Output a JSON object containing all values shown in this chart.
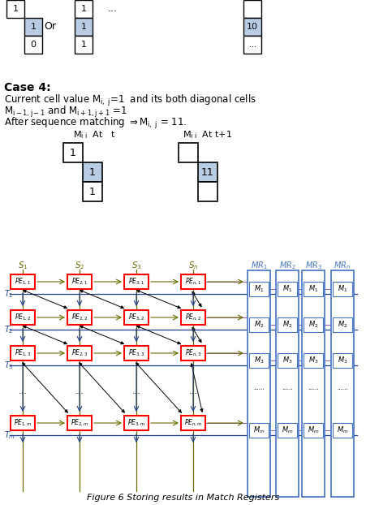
{
  "title": "Figure 6 Storing results in Match Registers",
  "bg_color": "#ffffff",
  "cell_blue": "#b8cce4",
  "red_box": "#ff0000",
  "blue_box": "#4472c4",
  "olive": "#6b6b00",
  "purple": "#9b59b6",
  "dark_blue": "#1f3e8c",
  "black": "#000000",
  "figw": 4.52,
  "figh": 6.22,
  "dpi": 100
}
